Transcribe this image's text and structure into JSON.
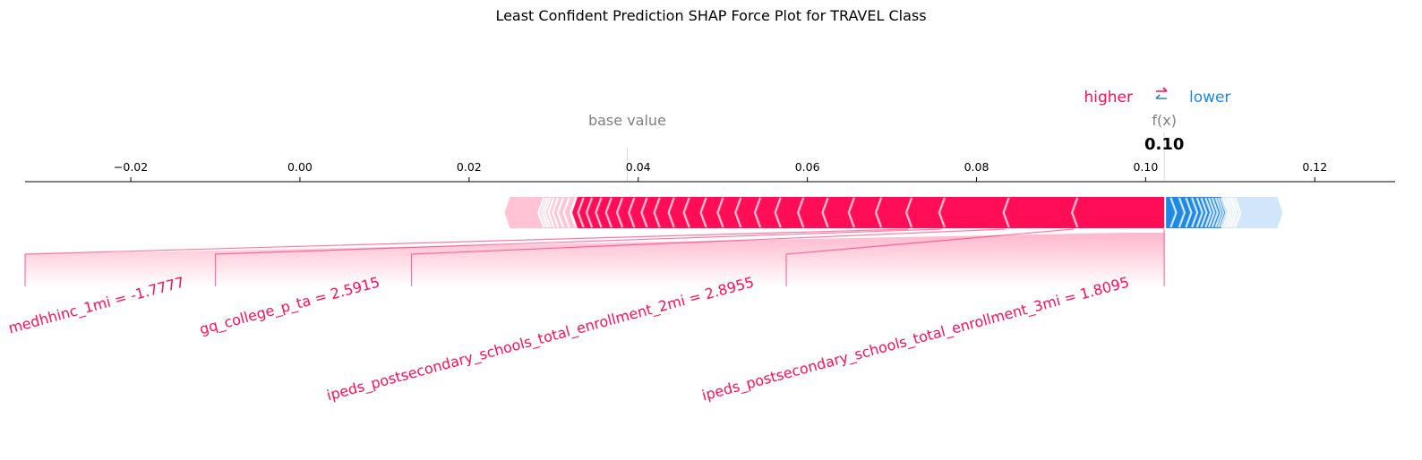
{
  "chart_data": {
    "type": "force",
    "title": "Least Confident Prediction SHAP Force Plot for TRAVEL Class",
    "xlim": [
      -0.0325,
      0.1295
    ],
    "ticks": [
      -0.02,
      0.0,
      0.02,
      0.04,
      0.06,
      0.08,
      0.1,
      0.12
    ],
    "tick_labels": [
      "−0.02",
      "0.00",
      "0.02",
      "0.04",
      "0.06",
      "0.08",
      "0.10",
      "0.12"
    ],
    "base_value": 0.0387,
    "base_value_label": "base value",
    "output_value": 0.1022,
    "output_label": "f(x)",
    "output_display": "0.10",
    "legend": {
      "higher": "higher",
      "lower": "lower",
      "arrows": "⇄"
    },
    "colors": {
      "positive": "#ff0d57",
      "positive_light": "#ffc3d5",
      "negative": "#1e88e5",
      "negative_light": "#d1e6fa"
    },
    "positive_segments": [
      0.0915,
      0.0834,
      0.0758,
      0.0719,
      0.0683,
      0.0651,
      0.062,
      0.0591,
      0.0564,
      0.054,
      0.0517,
      0.0496,
      0.0476,
      0.0456,
      0.0438,
      0.0421,
      0.0406,
      0.0391,
      0.0377,
      0.0364,
      0.0352,
      0.0341,
      0.0331,
      0.0322,
      0.0314,
      0.0307,
      0.0301,
      0.0296,
      0.0292,
      0.0289,
      0.0286,
      0.0284,
      0.0242
    ],
    "negative_segments": [
      0.1034,
      0.1044,
      0.1052,
      0.1059,
      0.1065,
      0.107,
      0.1075,
      0.1079,
      0.1083,
      0.1087,
      0.109,
      0.1093,
      0.1096,
      0.1099,
      0.1102,
      0.1105,
      0.1108,
      0.111,
      0.1162
    ],
    "labeled_features": [
      {
        "label": "ipeds_postsecondary_schools_total_enrollment_3mi = 1.8095",
        "seg_start": 0.1022,
        "seg_end": 0.0915,
        "anchor": 0.0575
      },
      {
        "label": "ipeds_postsecondary_schools_total_enrollment_2mi = 2.8955",
        "seg_start": 0.0915,
        "seg_end": 0.0834,
        "anchor": 0.0132
      },
      {
        "label": "gq_college_p_ta = 2.5915",
        "seg_start": 0.0834,
        "seg_end": 0.0758,
        "anchor": -0.01
      },
      {
        "label": "medhhinc_1mi = -1.7777",
        "seg_start": 0.0758,
        "seg_end": 0.0719,
        "anchor": -0.0325
      }
    ]
  }
}
